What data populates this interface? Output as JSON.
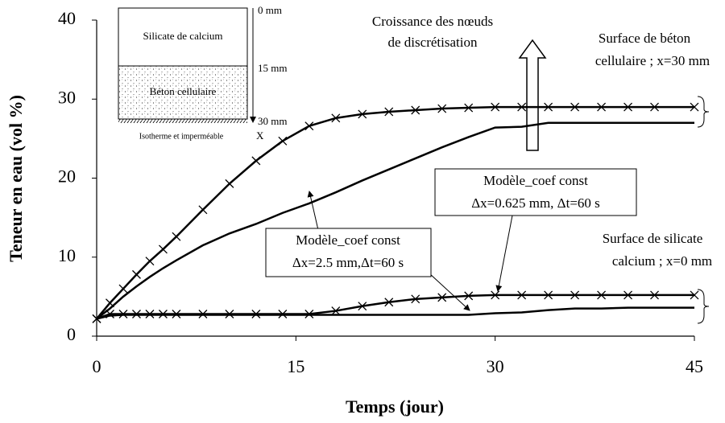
{
  "chart_data": {
    "type": "line",
    "x_label": "Temps (jour)",
    "y_label": "Teneur en eau (vol %)",
    "x": [
      0,
      1,
      2,
      3,
      4,
      5,
      6,
      8,
      10,
      12,
      14,
      16,
      18,
      20,
      22,
      24,
      26,
      28,
      30,
      32,
      34,
      36,
      38,
      40,
      42,
      45
    ],
    "series": [
      {
        "color": "#000000",
        "marker": "x",
        "values": [
          2.2,
          4.2,
          6,
          7.8,
          9.5,
          11,
          12.6,
          16,
          19.3,
          22.2,
          24.7,
          26.6,
          27.6,
          28.1,
          28.4,
          28.6,
          28.8,
          28.9,
          29,
          29,
          29,
          29,
          29,
          29,
          29,
          29
        ]
      },
      {
        "color": "#000000",
        "marker": "none",
        "values": [
          2.2,
          3.5,
          5,
          6.3,
          7.5,
          8.6,
          9.6,
          11.5,
          13,
          14.2,
          15.6,
          16.8,
          18.2,
          19.7,
          21.1,
          22.5,
          23.9,
          25.2,
          26.4,
          26.5,
          27,
          27,
          27,
          27,
          27,
          27
        ]
      },
      {
        "color": "#000000",
        "marker": "x",
        "values": [
          2.2,
          2.8,
          2.8,
          2.8,
          2.8,
          2.8,
          2.8,
          2.8,
          2.8,
          2.8,
          2.8,
          2.8,
          3.2,
          3.8,
          4.3,
          4.7,
          4.9,
          5.1,
          5.2,
          5.2,
          5.2,
          5.2,
          5.2,
          5.2,
          5.2,
          5.2
        ]
      },
      {
        "color": "#000000",
        "marker": "none",
        "values": [
          2.2,
          2.6,
          2.7,
          2.7,
          2.7,
          2.7,
          2.7,
          2.7,
          2.7,
          2.7,
          2.7,
          2.7,
          2.7,
          2.7,
          2.7,
          2.7,
          2.7,
          2.7,
          2.9,
          3,
          3.3,
          3.5,
          3.5,
          3.6,
          3.6,
          3.6
        ]
      }
    ],
    "xlim": [
      0,
      45
    ],
    "xticks": [
      0,
      15,
      30,
      45
    ],
    "ylim": [
      0,
      40
    ],
    "yticks": [
      0,
      10,
      20,
      30,
      40
    ],
    "grid": false,
    "annotations": {
      "growth": [
        "Croissance des nœuds",
        "de discrétisation"
      ],
      "beton_surface": [
        "Surface de béton",
        "cellulaire ; x=30 mm"
      ],
      "silicate_surface": [
        "Surface de silicate",
        "calcium ; x=0 mm"
      ],
      "model_fine": [
        "Modèle_coef const",
        "Δx=0.625 mm, Δt=60 s"
      ],
      "model_coarse": [
        "Modèle_coef const",
        "Δx=2.5 mm,Δt=60 s"
      ]
    },
    "inset": {
      "top_layer": "Silicate de calcium",
      "bottom_layer": "Béton cellulaire",
      "depth_labels": [
        "0 mm",
        "15 mm",
        "30 mm"
      ],
      "axis": "X",
      "boundary": "Isotherme et imperméable"
    }
  }
}
